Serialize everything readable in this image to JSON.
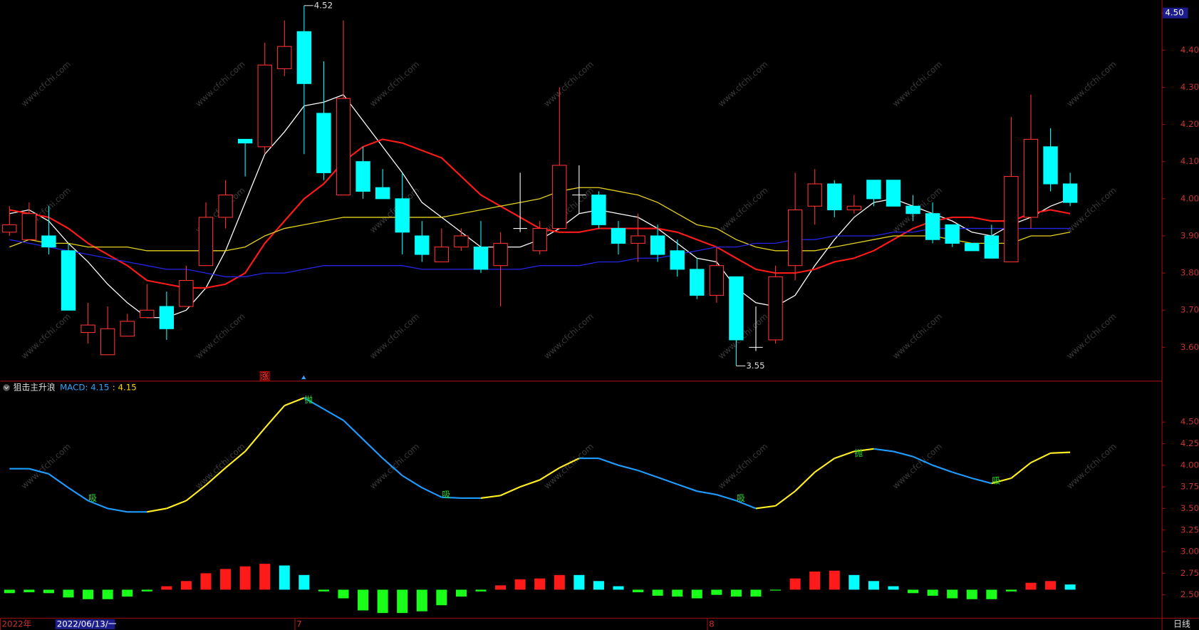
{
  "chart_data": [
    {
      "type": "candlestick",
      "categories": [
        "2022年",
        null,
        null,
        null,
        null,
        null,
        null,
        null,
        null,
        null,
        null,
        null,
        null,
        null,
        null,
        "7",
        null,
        null,
        null,
        null,
        null,
        null,
        null,
        null,
        null,
        null,
        null,
        null,
        null,
        null,
        null,
        null,
        null,
        null,
        null,
        null,
        "8",
        null,
        null,
        null,
        null,
        null,
        null,
        null,
        null,
        null,
        null,
        null,
        null,
        null,
        null,
        null,
        null,
        null,
        null
      ],
      "open": [
        3.91,
        3.89,
        3.9,
        3.86,
        3.64,
        3.58,
        3.63,
        3.68,
        3.71,
        3.71,
        3.82,
        3.95,
        4.16,
        4.14,
        4.35,
        4.45,
        4.23,
        4.01,
        4.1,
        4.03,
        4.0,
        3.9,
        3.83,
        3.87,
        3.87,
        3.82,
        3.92,
        3.86,
        3.92,
        4.01,
        4.01,
        3.92,
        3.88,
        3.9,
        3.86,
        3.81,
        3.74,
        3.79,
        3.6,
        3.62,
        3.82,
        3.98,
        4.04,
        3.97,
        4.05,
        4.05,
        3.98,
        3.96,
        3.93,
        3.88,
        3.9,
        3.83,
        3.95,
        4.14,
        4.04
      ],
      "high": [
        3.98,
        3.99,
        3.98,
        3.88,
        3.72,
        3.71,
        3.69,
        3.77,
        3.75,
        3.82,
        3.99,
        4.05,
        4.16,
        4.42,
        4.48,
        4.52,
        4.37,
        4.48,
        4.14,
        4.08,
        4.07,
        3.94,
        3.92,
        3.92,
        3.94,
        3.91,
        4.07,
        3.94,
        4.3,
        4.09,
        4.02,
        3.94,
        3.96,
        3.93,
        3.89,
        3.84,
        3.87,
        3.79,
        3.71,
        3.82,
        4.07,
        4.08,
        4.05,
        4.01,
        4.05,
        4.05,
        4.01,
        3.99,
        3.93,
        3.88,
        3.93,
        4.22,
        4.28,
        4.19,
        4.07
      ],
      "low": [
        3.9,
        3.89,
        3.85,
        3.7,
        3.61,
        3.58,
        3.63,
        3.68,
        3.62,
        3.71,
        3.82,
        3.92,
        4.06,
        4.12,
        4.33,
        4.12,
        4.05,
        4.01,
        4.0,
        4.0,
        3.85,
        3.83,
        3.83,
        3.86,
        3.8,
        3.71,
        3.91,
        3.85,
        3.92,
        3.96,
        3.92,
        3.85,
        3.83,
        3.83,
        3.79,
        3.73,
        3.72,
        3.55,
        3.59,
        3.61,
        3.78,
        3.93,
        3.95,
        3.96,
        3.98,
        3.98,
        3.94,
        3.88,
        3.87,
        3.86,
        3.84,
        3.83,
        3.92,
        4.02,
        3.98
      ],
      "close": [
        3.93,
        3.96,
        3.87,
        3.7,
        3.66,
        3.65,
        3.67,
        3.7,
        3.65,
        3.78,
        3.95,
        4.01,
        4.15,
        4.36,
        4.41,
        4.31,
        4.07,
        4.27,
        4.02,
        4.0,
        3.91,
        3.85,
        3.87,
        3.9,
        3.81,
        3.88,
        3.92,
        3.92,
        4.09,
        4.01,
        3.93,
        3.88,
        3.9,
        3.85,
        3.81,
        3.74,
        3.82,
        3.62,
        3.6,
        3.79,
        3.97,
        4.04,
        3.97,
        3.98,
        4.0,
        3.98,
        3.96,
        3.89,
        3.88,
        3.86,
        3.84,
        4.06,
        4.16,
        4.04,
        3.99
      ],
      "up_color": "#ff3232",
      "down_color": "#00ffff",
      "flat_color": "#ffffff",
      "series": [
        {
          "color": "#ffffff",
          "values": [
            3.96,
            3.97,
            3.94,
            3.88,
            3.83,
            3.77,
            3.72,
            3.68,
            3.68,
            3.7,
            3.76,
            3.86,
            3.99,
            4.12,
            4.18,
            4.25,
            4.26,
            4.28,
            4.21,
            4.14,
            4.07,
            3.99,
            3.95,
            3.91,
            3.87,
            3.87,
            3.87,
            3.89,
            3.92,
            3.96,
            3.97,
            3.96,
            3.95,
            3.92,
            3.88,
            3.84,
            3.83,
            3.76,
            3.72,
            3.71,
            3.74,
            3.82,
            3.89,
            3.95,
            3.99,
            4.0,
            3.98,
            3.96,
            3.94,
            3.91,
            3.9,
            3.93,
            3.95,
            3.98,
            4.0
          ]
        },
        {
          "color": "#ff1a1a",
          "values": [
            3.97,
            3.96,
            3.95,
            3.92,
            3.88,
            3.85,
            3.82,
            3.78,
            3.77,
            3.76,
            3.76,
            3.77,
            3.8,
            3.88,
            3.94,
            4.0,
            4.04,
            4.1,
            4.14,
            4.16,
            4.15,
            4.13,
            4.11,
            4.06,
            4.01,
            3.98,
            3.95,
            3.92,
            3.91,
            3.91,
            3.92,
            3.92,
            3.92,
            3.92,
            3.91,
            3.89,
            3.87,
            3.84,
            3.81,
            3.8,
            3.8,
            3.81,
            3.83,
            3.84,
            3.86,
            3.89,
            3.92,
            3.94,
            3.95,
            3.95,
            3.94,
            3.94,
            3.96,
            3.97,
            3.96
          ]
        },
        {
          "color": "#e6d21e",
          "values": [
            3.87,
            3.89,
            3.88,
            3.88,
            3.87,
            3.87,
            3.87,
            3.86,
            3.86,
            3.86,
            3.86,
            3.86,
            3.87,
            3.9,
            3.92,
            3.93,
            3.94,
            3.95,
            3.95,
            3.95,
            3.95,
            3.95,
            3.95,
            3.96,
            3.97,
            3.98,
            3.99,
            4.0,
            4.02,
            4.03,
            4.03,
            4.02,
            4.01,
            3.99,
            3.96,
            3.93,
            3.92,
            3.89,
            3.87,
            3.86,
            3.86,
            3.86,
            3.87,
            3.88,
            3.89,
            3.9,
            3.9,
            3.9,
            3.89,
            3.88,
            3.88,
            3.88,
            3.9,
            3.9,
            3.91
          ]
        },
        {
          "color": "#2424e6",
          "values": [
            3.89,
            3.88,
            3.87,
            3.86,
            3.85,
            3.84,
            3.83,
            3.82,
            3.81,
            3.81,
            3.8,
            3.79,
            3.79,
            3.8,
            3.8,
            3.81,
            3.82,
            3.82,
            3.82,
            3.82,
            3.82,
            3.81,
            3.81,
            3.81,
            3.81,
            3.81,
            3.81,
            3.82,
            3.82,
            3.82,
            3.83,
            3.83,
            3.84,
            3.84,
            3.85,
            3.86,
            3.87,
            3.87,
            3.88,
            3.88,
            3.89,
            3.89,
            3.9,
            3.9,
            3.9,
            3.91,
            3.91,
            3.92,
            3.92,
            3.92,
            3.92,
            3.92,
            3.92,
            3.92,
            3.92
          ]
        }
      ],
      "extreme_labels": [
        {
          "index": 15,
          "field": "high",
          "label": "4.52"
        },
        {
          "index": 37,
          "field": "low",
          "label": "3.55"
        }
      ],
      "signals": [
        {
          "index": 13,
          "text": "涨"
        }
      ],
      "ylim": [
        3.51,
        4.535
      ],
      "yticks": [
        {
          "value": 3.6,
          "label": "3.60"
        },
        {
          "value": 3.7,
          "label": "3.70"
        },
        {
          "value": 3.8,
          "label": "3.80"
        },
        {
          "value": 3.9,
          "label": "3.90"
        },
        {
          "value": 4.0,
          "label": "4.00"
        },
        {
          "value": 4.1,
          "label": "4.10"
        },
        {
          "value": 4.2,
          "label": "4.20"
        },
        {
          "value": 4.3,
          "label": "4.30"
        },
        {
          "value": 4.4,
          "label": "4.40"
        },
        {
          "value": 4.5,
          "label": "4.50"
        }
      ]
    },
    {
      "type": "line",
      "indicator": "狙击主升浪",
      "legend_items": [
        {
          "text": "MACD: 4.15",
          "color": "#2aa7ff"
        },
        {
          "text": ": 4.15",
          "color": "#ffd400"
        }
      ],
      "rise_color": "#ffee22",
      "fall_color": "#1e9bff",
      "values": [
        3.96,
        3.96,
        3.9,
        3.74,
        3.59,
        3.5,
        3.46,
        3.46,
        3.5,
        3.59,
        3.77,
        3.97,
        4.16,
        4.43,
        4.69,
        4.78,
        4.65,
        4.52,
        4.3,
        4.08,
        3.88,
        3.74,
        3.63,
        3.62,
        3.62,
        3.65,
        3.75,
        3.83,
        3.97,
        4.08,
        4.08,
        4.0,
        3.94,
        3.86,
        3.78,
        3.7,
        3.66,
        3.59,
        3.5,
        3.53,
        3.7,
        3.92,
        4.08,
        4.16,
        4.19,
        4.16,
        4.1,
        4.0,
        3.92,
        3.85,
        3.79,
        3.85,
        4.03,
        4.14,
        4.15
      ],
      "signals": [
        {
          "index": 4,
          "text": "吸"
        },
        {
          "index": 15,
          "text": "抛"
        },
        {
          "index": 22,
          "text": "吸"
        },
        {
          "index": 37,
          "text": "吸"
        },
        {
          "index": 43,
          "text": "抛"
        },
        {
          "index": 50,
          "text": "吸"
        }
      ],
      "histogram": {
        "base": 2.56,
        "up_color": "#ff1a1a",
        "fade_color": "#00ffff",
        "down_color": "#1aff1a",
        "values": [
          2.52,
          2.53,
          2.52,
          2.47,
          2.45,
          2.45,
          2.48,
          2.54,
          2.6,
          2.66,
          2.75,
          2.8,
          2.83,
          2.86,
          2.84,
          2.73,
          2.54,
          2.46,
          2.32,
          2.29,
          2.29,
          2.31,
          2.38,
          2.48,
          2.54,
          2.61,
          2.68,
          2.69,
          2.73,
          2.73,
          2.66,
          2.6,
          2.53,
          2.49,
          2.48,
          2.46,
          2.5,
          2.48,
          2.48,
          2.55,
          2.69,
          2.77,
          2.78,
          2.73,
          2.66,
          2.6,
          2.52,
          2.49,
          2.46,
          2.45,
          2.45,
          2.54,
          2.64,
          2.66,
          2.62
        ]
      },
      "ylim": [
        2.235,
        4.96
      ],
      "yticks": [
        {
          "value": 2.5,
          "label": "2.50"
        },
        {
          "value": 2.75,
          "label": "2.75"
        },
        {
          "value": 3.0,
          "label": "3.00"
        },
        {
          "value": 3.25,
          "label": "3.25"
        },
        {
          "value": 3.5,
          "label": "3.50"
        },
        {
          "value": 3.75,
          "label": "3.75"
        },
        {
          "value": 4.0,
          "label": "4.00"
        },
        {
          "value": 4.25,
          "label": "4.25"
        },
        {
          "value": 4.5,
          "label": "4.50"
        }
      ]
    }
  ],
  "cursor_date": "2022/06/13/一",
  "period": "日线",
  "watermark": "www.cfchi.com"
}
